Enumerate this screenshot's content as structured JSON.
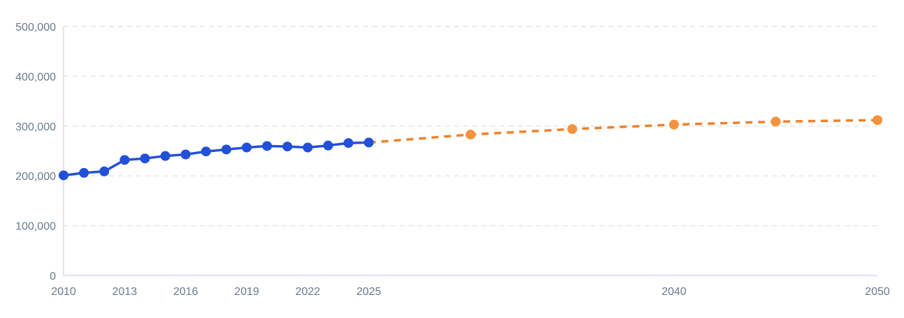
{
  "chart_data": {
    "type": "line",
    "title": "",
    "xlabel": "",
    "ylabel": "",
    "xlim": [
      2010,
      2050
    ],
    "ylim": [
      0,
      500000
    ],
    "x_ticks": [
      2010,
      2013,
      2016,
      2019,
      2022,
      2025,
      2040,
      2050
    ],
    "x_tick_labels": [
      "2010",
      "2013",
      "2016",
      "2019",
      "2022",
      "2025",
      "2040",
      "2050"
    ],
    "y_ticks": [
      0,
      100000,
      200000,
      300000,
      400000,
      500000
    ],
    "y_tick_labels": [
      "0",
      "100,000",
      "200,000",
      "300,000",
      "400,000",
      "500,000"
    ],
    "grid": true,
    "legend": "none",
    "series": [
      {
        "style": "solid",
        "color": "#2350d8",
        "x": [
          2010,
          2011,
          2012,
          2013,
          2014,
          2015,
          2016,
          2017,
          2018,
          2019,
          2020,
          2021,
          2022,
          2023,
          2024,
          2025
        ],
        "y": [
          201000,
          206000,
          209000,
          232000,
          235000,
          240000,
          243000,
          249000,
          253000,
          257000,
          260000,
          259000,
          257000,
          261000,
          266000,
          267000
        ]
      },
      {
        "style": "dashed",
        "color": "#f0802a",
        "marker_color": "#f5923e",
        "x": [
          2025,
          2030,
          2035,
          2040,
          2045,
          2050
        ],
        "y": [
          267000,
          283000,
          294000,
          303000,
          309000,
          312000
        ]
      }
    ]
  }
}
